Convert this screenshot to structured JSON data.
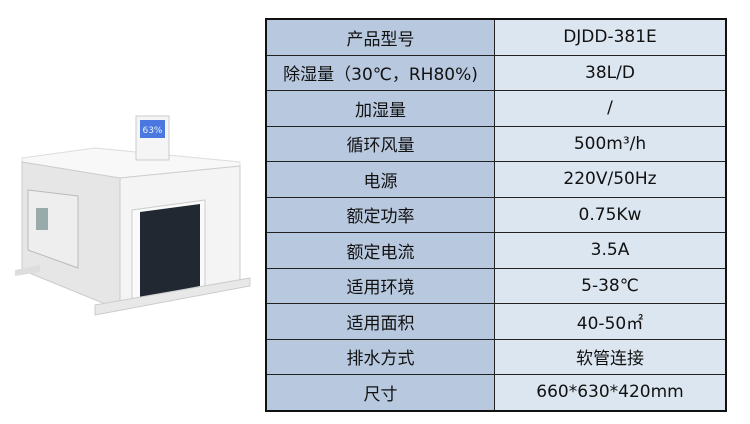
{
  "product_image": {
    "display_reading": "63%",
    "colors": {
      "body": "#f2f2f2",
      "coil": "#222831",
      "display": "#4a78e0"
    }
  },
  "spec_table": {
    "colors": {
      "label_bg": "#b8c9df",
      "value_bg": "#dce6f1",
      "border": "#222222"
    },
    "rows": [
      {
        "label": "产品型号",
        "value": "DJDD-381E"
      },
      {
        "label": "除湿量（30℃，RH80%)",
        "value": "38L/D"
      },
      {
        "label": "加湿量",
        "value": "/"
      },
      {
        "label": "循环风量",
        "value": "500m³/h"
      },
      {
        "label": "电源",
        "value": "220V/50Hz"
      },
      {
        "label": "额定功率",
        "value": "0.75Kw"
      },
      {
        "label": "额定电流",
        "value": "3.5A"
      },
      {
        "label": "适用环境",
        "value": "5-38℃"
      },
      {
        "label": "适用面积",
        "value": "40-50㎡"
      },
      {
        "label": "排水方式",
        "value": "软管连接"
      },
      {
        "label": "尺寸",
        "value": "660*630*420mm"
      }
    ]
  }
}
